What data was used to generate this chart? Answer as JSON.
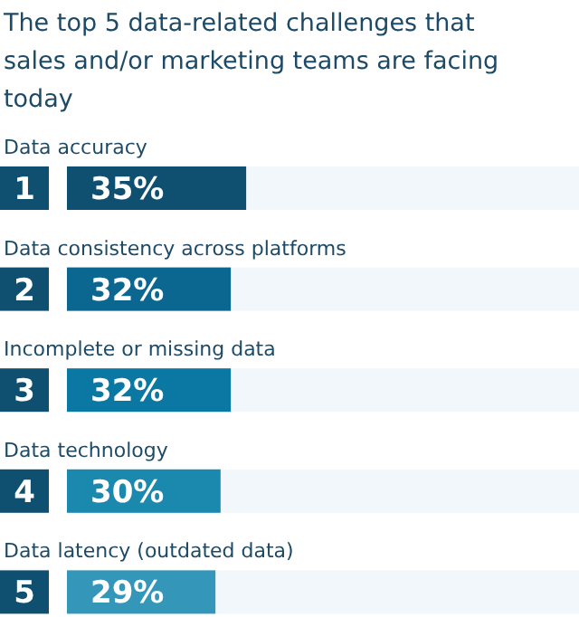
{
  "chart_data": {
    "type": "bar",
    "orientation": "horizontal",
    "title": "The top 5 data-related challenges that sales and/or marketing teams are facing today",
    "categories": [
      "Data accuracy",
      "Data consistency across platforms",
      "Incomplete or missing data",
      "Data technology",
      "Data latency (outdated data)"
    ],
    "values": [
      35,
      32,
      32,
      30,
      29
    ],
    "colors": [
      "#0f4f6f",
      "#0b6690",
      "#0a78a3",
      "#1b88ae",
      "#3496b8"
    ],
    "value_labels": [
      "35%",
      "32%",
      "32%",
      "30%",
      "29%"
    ],
    "xlim": [
      0,
      100
    ],
    "annotations": [
      "1",
      "2",
      "3",
      "4",
      "5"
    ]
  }
}
